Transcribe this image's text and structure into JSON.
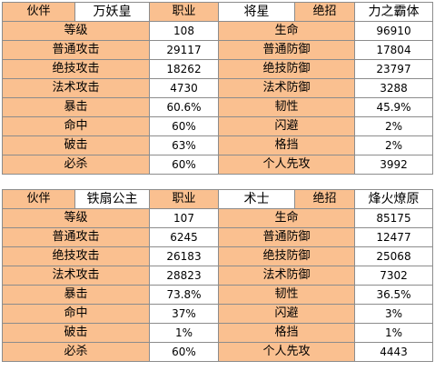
{
  "tables": [
    {
      "partner_label": "伙伴",
      "partner_name": "万妖皇",
      "job_label": "职业",
      "job_value": "将星",
      "skill_label": "绝招",
      "skill_value": "力之霸体",
      "rows": [
        {
          "l1": "等级",
          "v1": "108",
          "l2": "生命",
          "v2": "96910"
        },
        {
          "l1": "普通攻击",
          "v1": "29117",
          "l2": "普通防御",
          "v2": "17804"
        },
        {
          "l1": "绝技攻击",
          "v1": "18262",
          "l2": "绝技防御",
          "v2": "23797"
        },
        {
          "l1": "法术攻击",
          "v1": "4730",
          "l2": "法术防御",
          "v2": "3288"
        },
        {
          "l1": "暴击",
          "v1": "60.6%",
          "l2": "韧性",
          "v2": "45.9%"
        },
        {
          "l1": "命中",
          "v1": "60%",
          "l2": "闪避",
          "v2": "2%"
        },
        {
          "l1": "破击",
          "v1": "63%",
          "l2": "格挡",
          "v2": "2%"
        },
        {
          "l1": "必杀",
          "v1": "60%",
          "l2": "个人先攻",
          "v2": "3992"
        }
      ]
    },
    {
      "partner_label": "伙伴",
      "partner_name": "铁扇公主",
      "job_label": "职业",
      "job_value": "术士",
      "skill_label": "绝招",
      "skill_value": "烽火燎原",
      "rows": [
        {
          "l1": "等级",
          "v1": "107",
          "l2": "生命",
          "v2": "85175"
        },
        {
          "l1": "普通攻击",
          "v1": "6245",
          "l2": "普通防御",
          "v2": "12477"
        },
        {
          "l1": "绝技攻击",
          "v1": "26183",
          "l2": "绝技防御",
          "v2": "25068"
        },
        {
          "l1": "法术攻击",
          "v1": "28823",
          "l2": "法术防御",
          "v2": "7302"
        },
        {
          "l1": "暴击",
          "v1": "73.8%",
          "l2": "韧性",
          "v2": "36.5%"
        },
        {
          "l1": "命中",
          "v1": "37%",
          "l2": "闪避",
          "v2": "3%"
        },
        {
          "l1": "破击",
          "v1": "1%",
          "l2": "格挡",
          "v2": "1%"
        },
        {
          "l1": "必杀",
          "v1": "60%",
          "l2": "个人先攻",
          "v2": "4443"
        }
      ]
    }
  ]
}
